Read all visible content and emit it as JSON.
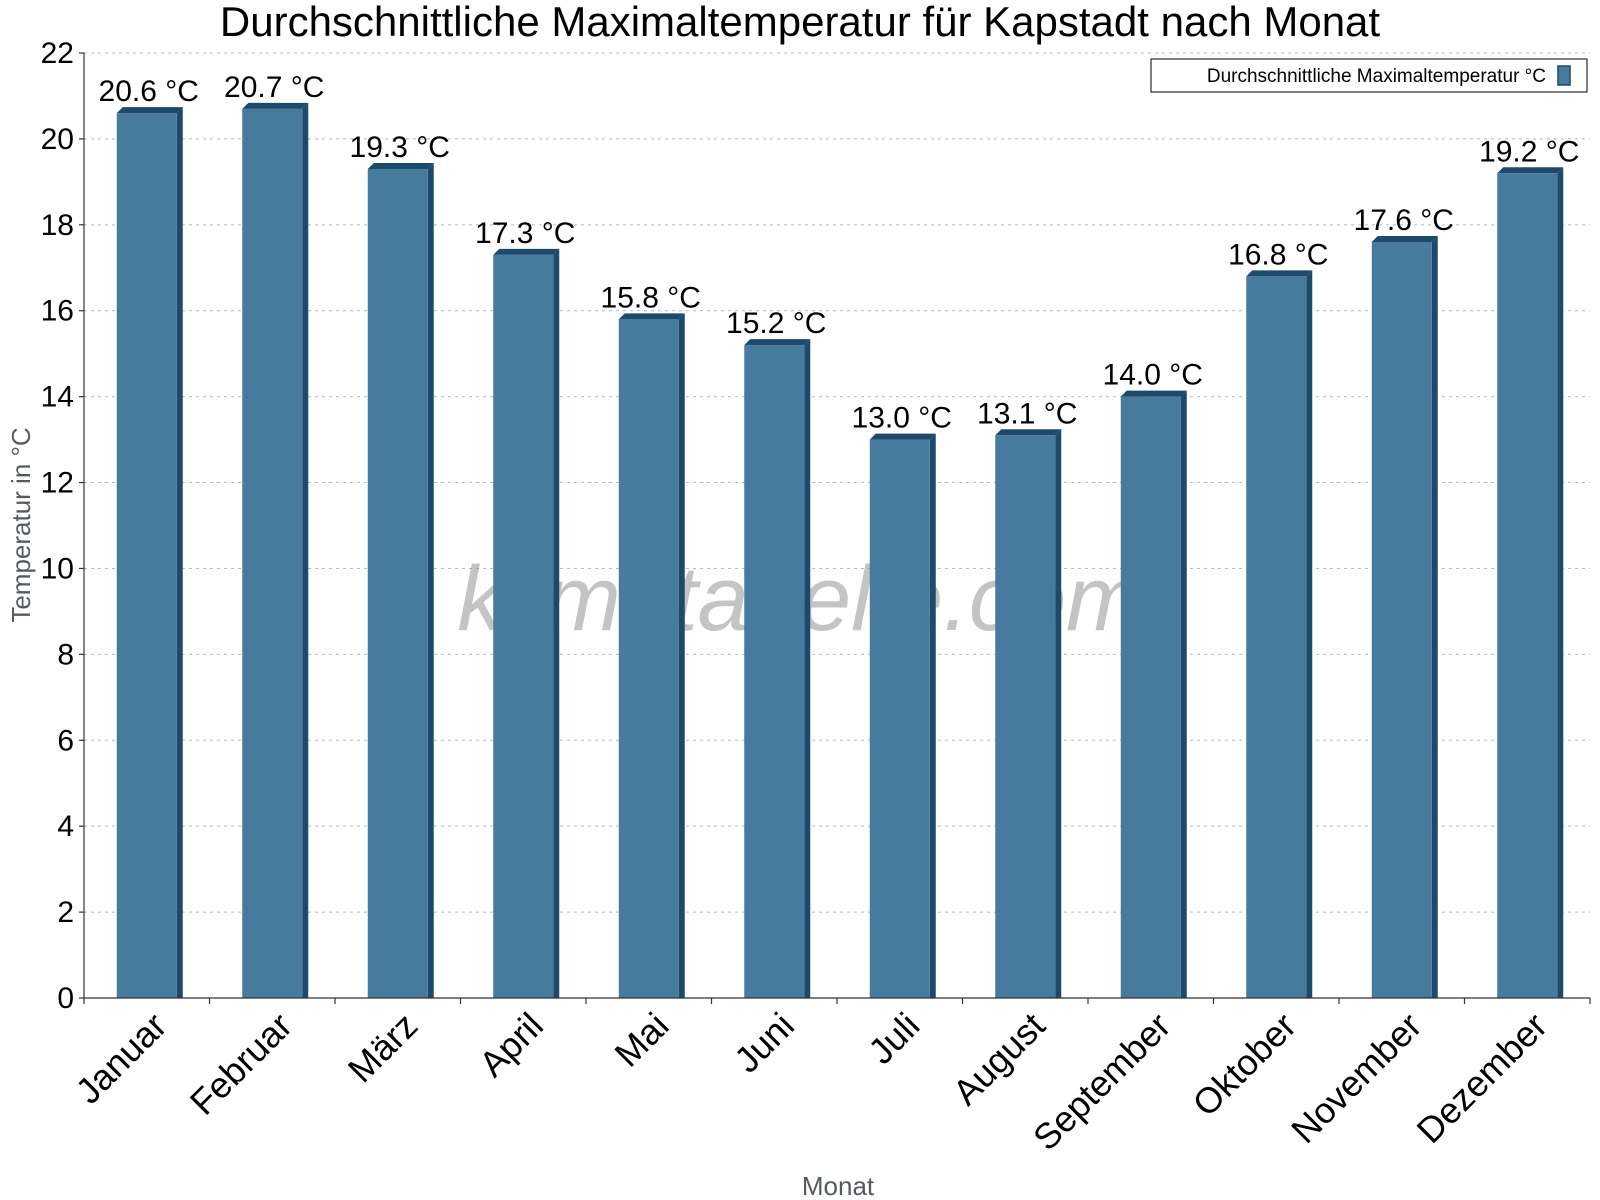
{
  "chart_data": {
    "type": "bar",
    "title": "Durchschnittliche Maximaltemperatur für Kapstadt nach Monat",
    "xlabel": "Monat",
    "ylabel": "Temperatur in °C",
    "categories": [
      "Januar",
      "Februar",
      "März",
      "April",
      "Mai",
      "Juni",
      "Juli",
      "August",
      "September",
      "Oktober",
      "November",
      "Dezember"
    ],
    "series": [
      {
        "name": "Durchschnittliche Maximaltemperatur °C",
        "color": "#467b9d",
        "edge_color": "#1d4a6b",
        "values": [
          20.6,
          20.7,
          19.3,
          17.3,
          15.8,
          15.2,
          13.0,
          13.1,
          14.0,
          16.8,
          17.6,
          19.2
        ],
        "labels": [
          "20.6 °C",
          "20.7 °C",
          "19.3 °C",
          "17.3 °C",
          "15.8 °C",
          "15.2 °C",
          "13.0 °C",
          "13.1 °C",
          "14.0 °C",
          "16.8 °C",
          "17.6 °C",
          "19.2 °C"
        ]
      }
    ],
    "ylim": [
      0,
      22
    ],
    "yticks": [
      0,
      2,
      4,
      6,
      8,
      10,
      12,
      14,
      16,
      18,
      20,
      22
    ],
    "grid": true,
    "legend_position": "top-right",
    "watermark": "klimatabelle.com"
  }
}
